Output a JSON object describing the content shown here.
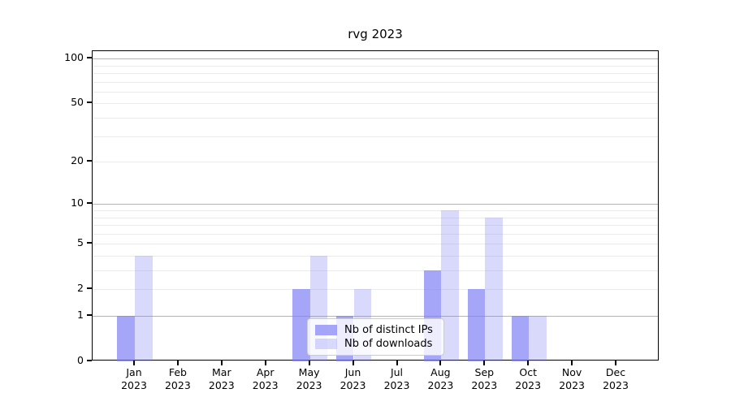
{
  "chart_data": {
    "type": "bar",
    "title": "rvg 2023",
    "categories": [
      "Jan 2023",
      "Feb 2023",
      "Mar 2023",
      "Apr 2023",
      "May 2023",
      "Jun 2023",
      "Jul 2023",
      "Aug 2023",
      "Sep 2023",
      "Oct 2023",
      "Nov 2023",
      "Dec 2023"
    ],
    "x_ticks": [
      {
        "month": "Jan",
        "year": "2023"
      },
      {
        "month": "Feb",
        "year": "2023"
      },
      {
        "month": "Mar",
        "year": "2023"
      },
      {
        "month": "Apr",
        "year": "2023"
      },
      {
        "month": "May",
        "year": "2023"
      },
      {
        "month": "Jun",
        "year": "2023"
      },
      {
        "month": "Jul",
        "year": "2023"
      },
      {
        "month": "Aug",
        "year": "2023"
      },
      {
        "month": "Sep",
        "year": "2023"
      },
      {
        "month": "Oct",
        "year": "2023"
      },
      {
        "month": "Nov",
        "year": "2023"
      },
      {
        "month": "Dec",
        "year": "2023"
      }
    ],
    "series": [
      {
        "name": "Nb of distinct IPs",
        "color": "#a6a6f7",
        "base_color": "#7c7cf5",
        "alpha": 0.68,
        "values": [
          1,
          0,
          0,
          0,
          2,
          1,
          0,
          3,
          2,
          1,
          0,
          0
        ]
      },
      {
        "name": "Nb of downloads",
        "color": "#d9d9f9",
        "base_color": "#7c7cf5",
        "alpha": 0.29,
        "values": [
          4,
          0,
          0,
          0,
          4,
          2,
          0,
          9,
          8,
          1,
          0,
          0
        ]
      }
    ],
    "y_scale": "log1p",
    "y_ticks": [
      100,
      50,
      20,
      10,
      5,
      2,
      1,
      0
    ],
    "y_major_gridlines": [
      1,
      10,
      100
    ],
    "y_minor_gridlines": [
      2,
      3,
      4,
      5,
      6,
      7,
      8,
      9,
      20,
      30,
      40,
      50,
      60,
      70,
      80,
      90
    ],
    "ylim": [
      0,
      112
    ],
    "xlabel": "",
    "ylabel": "",
    "grid": true,
    "legend_position": "lower center"
  },
  "colors": {
    "background": "#ffffff",
    "spine": "#000000",
    "major_grid": "#b4b4b4",
    "minor_grid": "#ebebeb",
    "legend_border": "#cccccc"
  }
}
